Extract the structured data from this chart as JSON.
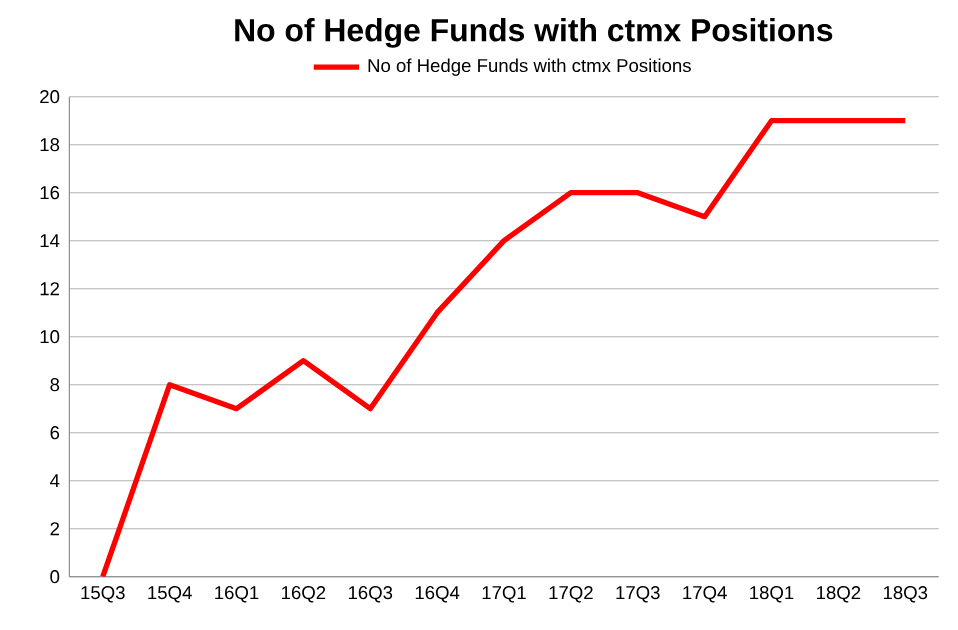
{
  "chart_data": {
    "type": "line",
    "title": "No of Hedge Funds with ctmx Positions",
    "categories": [
      "15Q3",
      "15Q4",
      "16Q1",
      "16Q2",
      "16Q3",
      "16Q4",
      "17Q1",
      "17Q2",
      "17Q3",
      "17Q4",
      "18Q1",
      "18Q2",
      "18Q3"
    ],
    "series": [
      {
        "name": "No of Hedge Funds with ctmx Positions",
        "color": "#ff0000",
        "values": [
          0,
          8,
          7,
          9,
          7,
          11,
          14,
          16,
          16,
          15,
          19,
          19,
          19
        ]
      }
    ],
    "ylim": [
      0,
      20
    ],
    "yticks": [
      0,
      2,
      4,
      6,
      8,
      10,
      12,
      14,
      16,
      18,
      20
    ],
    "grid": "y",
    "legend": "top",
    "marker": "none",
    "line_style": "solid"
  }
}
